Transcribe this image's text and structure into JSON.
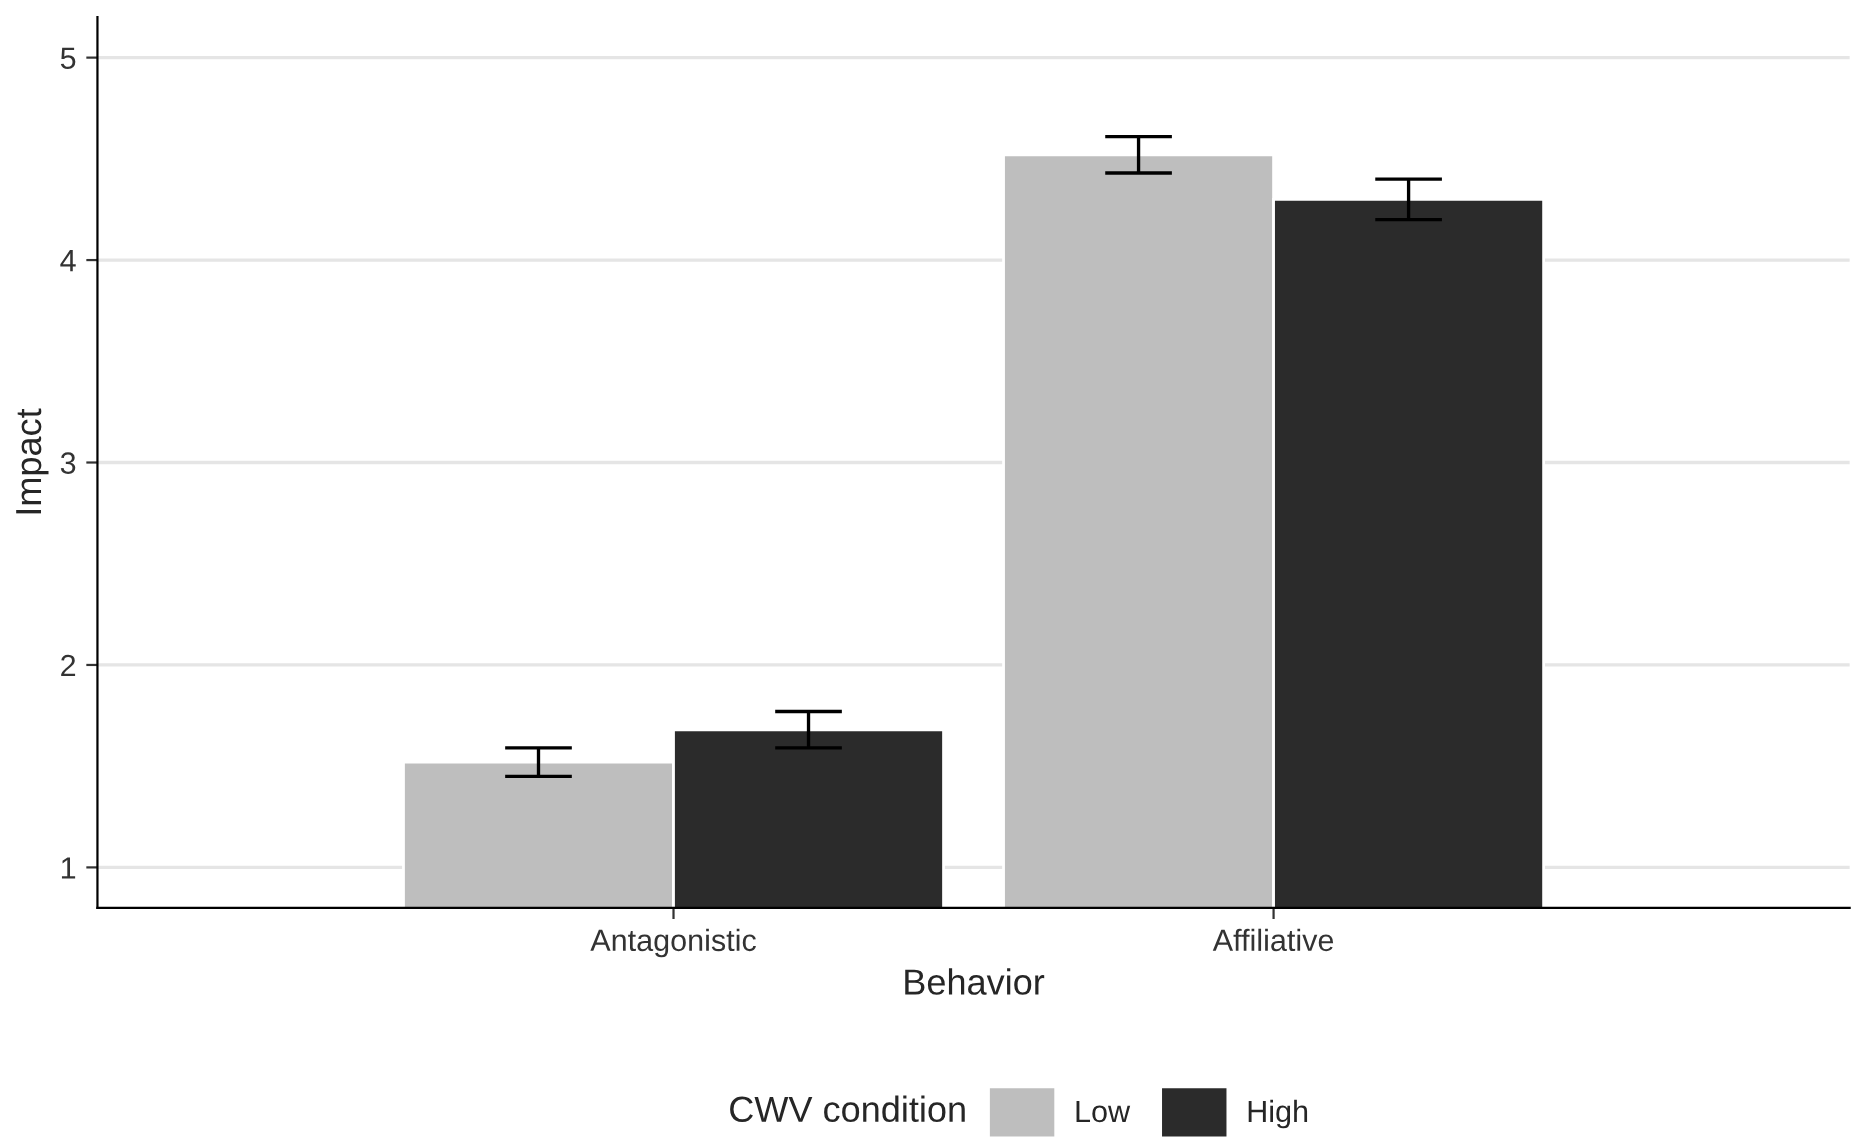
{
  "chart_data": {
    "type": "bar",
    "xlabel": "Behavior",
    "ylabel": "Impact",
    "legend_title": "CWV condition",
    "categories": [
      "Antagonistic",
      "Affiliative"
    ],
    "series": [
      {
        "name": "Low",
        "color": "#bebebe",
        "values": [
          1.52,
          4.52
        ],
        "errors": [
          [
            1.45,
            1.59
          ],
          [
            4.43,
            4.61
          ]
        ]
      },
      {
        "name": "High",
        "color": "#2b2b2b",
        "values": [
          1.68,
          4.3
        ],
        "errors": [
          [
            1.59,
            1.77
          ],
          [
            4.2,
            4.4
          ]
        ]
      }
    ],
    "ylim": [
      0.8,
      5.2
    ],
    "yticks": [
      1,
      2,
      3,
      4,
      5
    ],
    "grid": "y",
    "legend": "bottom"
  }
}
